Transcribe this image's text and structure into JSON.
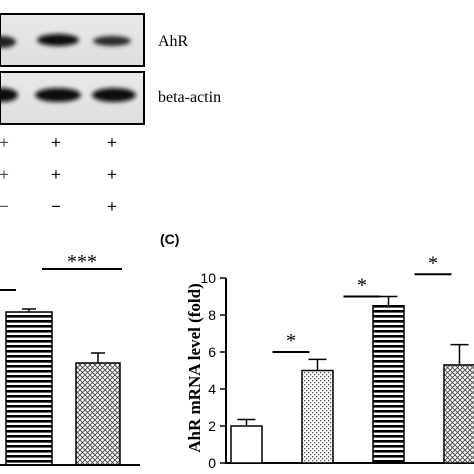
{
  "blot": {
    "rows": [
      {
        "label": "AhR"
      },
      {
        "label": "beta-actin"
      }
    ],
    "treatment_rows": [
      [
        "+",
        "+",
        "+"
      ],
      [
        "+",
        "+",
        "+"
      ],
      [
        "−",
        "−",
        "+"
      ]
    ]
  },
  "panel_b_partial": {
    "significance": [
      "***"
    ]
  },
  "panel_c": {
    "label": "(C)"
  },
  "chart_data": {
    "type": "bar",
    "ylabel": "AhR mRNA level (fold)",
    "ylim": [
      0,
      10
    ],
    "yticks": [
      "0",
      "2",
      "4",
      "6",
      "8",
      "10"
    ],
    "bars": [
      {
        "value": 2.0,
        "error": 0.35,
        "pattern": "white"
      },
      {
        "value": 5.0,
        "error": 0.6,
        "pattern": "stipple"
      },
      {
        "value": 8.5,
        "error": 0.5,
        "pattern": "hstripe"
      },
      {
        "value": 5.3,
        "error": 1.1,
        "pattern": "crosshatch"
      }
    ],
    "significance": [
      {
        "between": [
          0,
          1
        ],
        "label": "*",
        "y": 6.0
      },
      {
        "between": [
          1,
          2
        ],
        "label": "*",
        "y": 9.0
      },
      {
        "between": [
          2,
          3
        ],
        "label": "*",
        "y": 10.2
      }
    ]
  }
}
